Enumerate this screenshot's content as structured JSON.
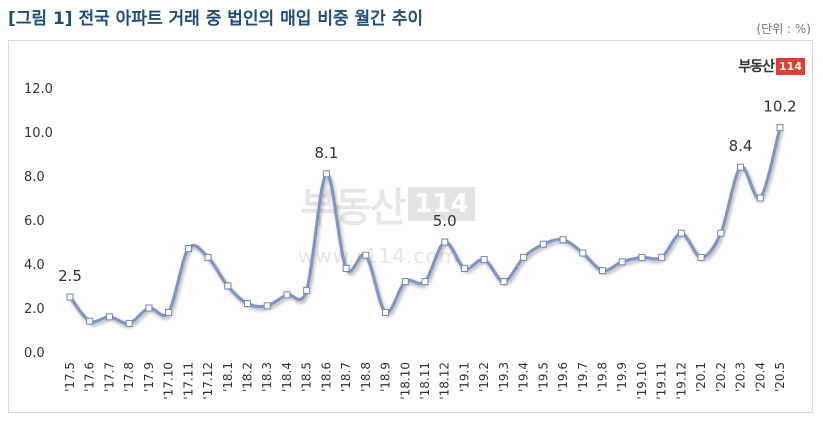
{
  "header": {
    "title": "[그림 1] 전국 아파트 거래 중 법인의 매입 비중 월간 추이",
    "unit": "(단위 : %)"
  },
  "logo": {
    "brand": "부동산",
    "number": "114"
  },
  "watermark": {
    "brand": "부동산",
    "number": "114",
    "url": "www.r114.com"
  },
  "colors": {
    "line": "#7f96c4",
    "marker_fill": "#ffffff",
    "marker_stroke": "#6f86b8",
    "title": "#1f4e79"
  },
  "chart_data": {
    "type": "line",
    "title": "[그림 1] 전국 아파트 거래 중 법인의 매입 비중 월간 추이",
    "xlabel": "",
    "ylabel": "",
    "ylim": [
      0,
      12
    ],
    "yticks": [
      "0.0",
      "2.0",
      "4.0",
      "6.0",
      "8.0",
      "10.0",
      "12.0"
    ],
    "grid": false,
    "categories": [
      "'17.5",
      "'17.6",
      "'17.7",
      "'17.8",
      "'17.9",
      "'17.10",
      "'17.11",
      "'17.12",
      "'18.1",
      "'18.2",
      "'18.3",
      "'18.4",
      "'18.5",
      "'18.6",
      "'18.7",
      "'18.8",
      "'18.9",
      "'18.10",
      "'18.11",
      "'18.12",
      "'19.1",
      "'19.2",
      "'19.3",
      "'19.4",
      "'19.5",
      "'19.6",
      "'19.7",
      "'19.8",
      "'19.9",
      "'19.10",
      "'19.11",
      "'19.12",
      "'20.1",
      "'20.2",
      "'20.3",
      "'20.4",
      "'20.5"
    ],
    "series": [
      {
        "values": [
          2.5,
          1.4,
          1.6,
          1.3,
          2.0,
          1.8,
          4.7,
          4.3,
          3.0,
          2.2,
          2.1,
          2.6,
          2.8,
          8.1,
          3.8,
          4.4,
          1.8,
          3.2,
          3.2,
          5.0,
          3.8,
          4.2,
          3.2,
          4.3,
          4.9,
          5.1,
          4.5,
          3.7,
          4.1,
          4.3,
          4.3,
          5.4,
          4.3,
          5.4,
          8.4,
          7.0,
          10.2
        ]
      }
    ],
    "data_labels": [
      {
        "index": 0,
        "text": "2.5"
      },
      {
        "index": 13,
        "text": "8.1"
      },
      {
        "index": 19,
        "text": "5.0"
      },
      {
        "index": 34,
        "text": "8.4"
      },
      {
        "index": 36,
        "text": "10.2"
      }
    ]
  }
}
